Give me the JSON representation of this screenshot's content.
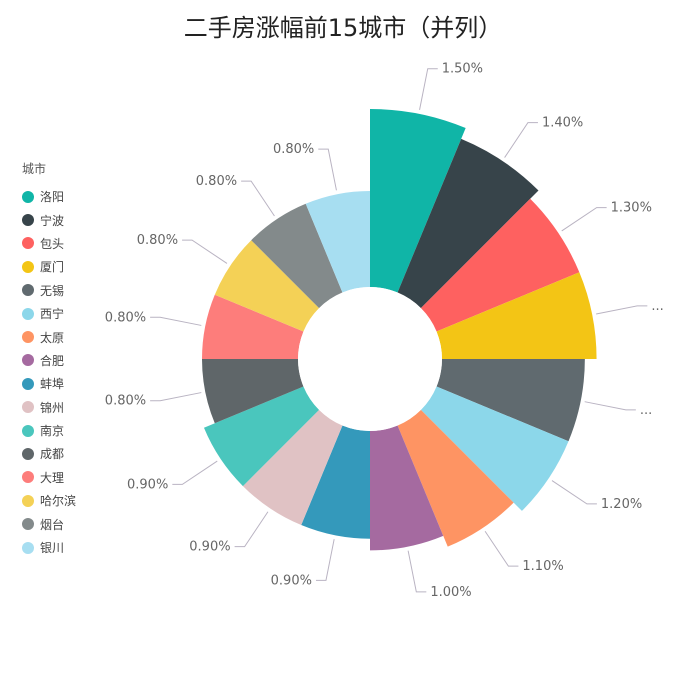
{
  "chart_data": {
    "type": "pie",
    "title": "二手房涨幅前15城市（并列）",
    "legend_title": "城市",
    "legend_position": "left",
    "categories": [
      "洛阳",
      "宁波",
      "包头",
      "厦门",
      "无锡",
      "西宁",
      "太原",
      "合肥",
      "蚌埠",
      "锦州",
      "南京",
      "成都",
      "大理",
      "哈尔滨",
      "烟台",
      "银川"
    ],
    "values": [
      1.5,
      1.4,
      1.3,
      1.3,
      1.2,
      1.2,
      1.1,
      1.0,
      0.9,
      0.9,
      0.9,
      0.8,
      0.8,
      0.8,
      0.8,
      0.8
    ],
    "labels": [
      "1.50%",
      "1.40%",
      "1.30%",
      "...",
      "...",
      "1.20%",
      "1.10%",
      "1.00%",
      "0.90%",
      "0.90%",
      "0.90%",
      "0.80%",
      "0.80%",
      "0.80%",
      "0.80%",
      "0.80%"
    ],
    "colors": [
      "#10b5a7",
      "#37444a",
      "#fe6160",
      "#f3c515",
      "#606a6f",
      "#8cd7ea",
      "#fe9463",
      "#a56aa0",
      "#3499bb",
      "#e0c2c4",
      "#4ac6bd",
      "#5f6669",
      "#fd7d7b",
      "#f4d156",
      "#838a8b",
      "#a7def1"
    ],
    "rose_type": "radius"
  }
}
